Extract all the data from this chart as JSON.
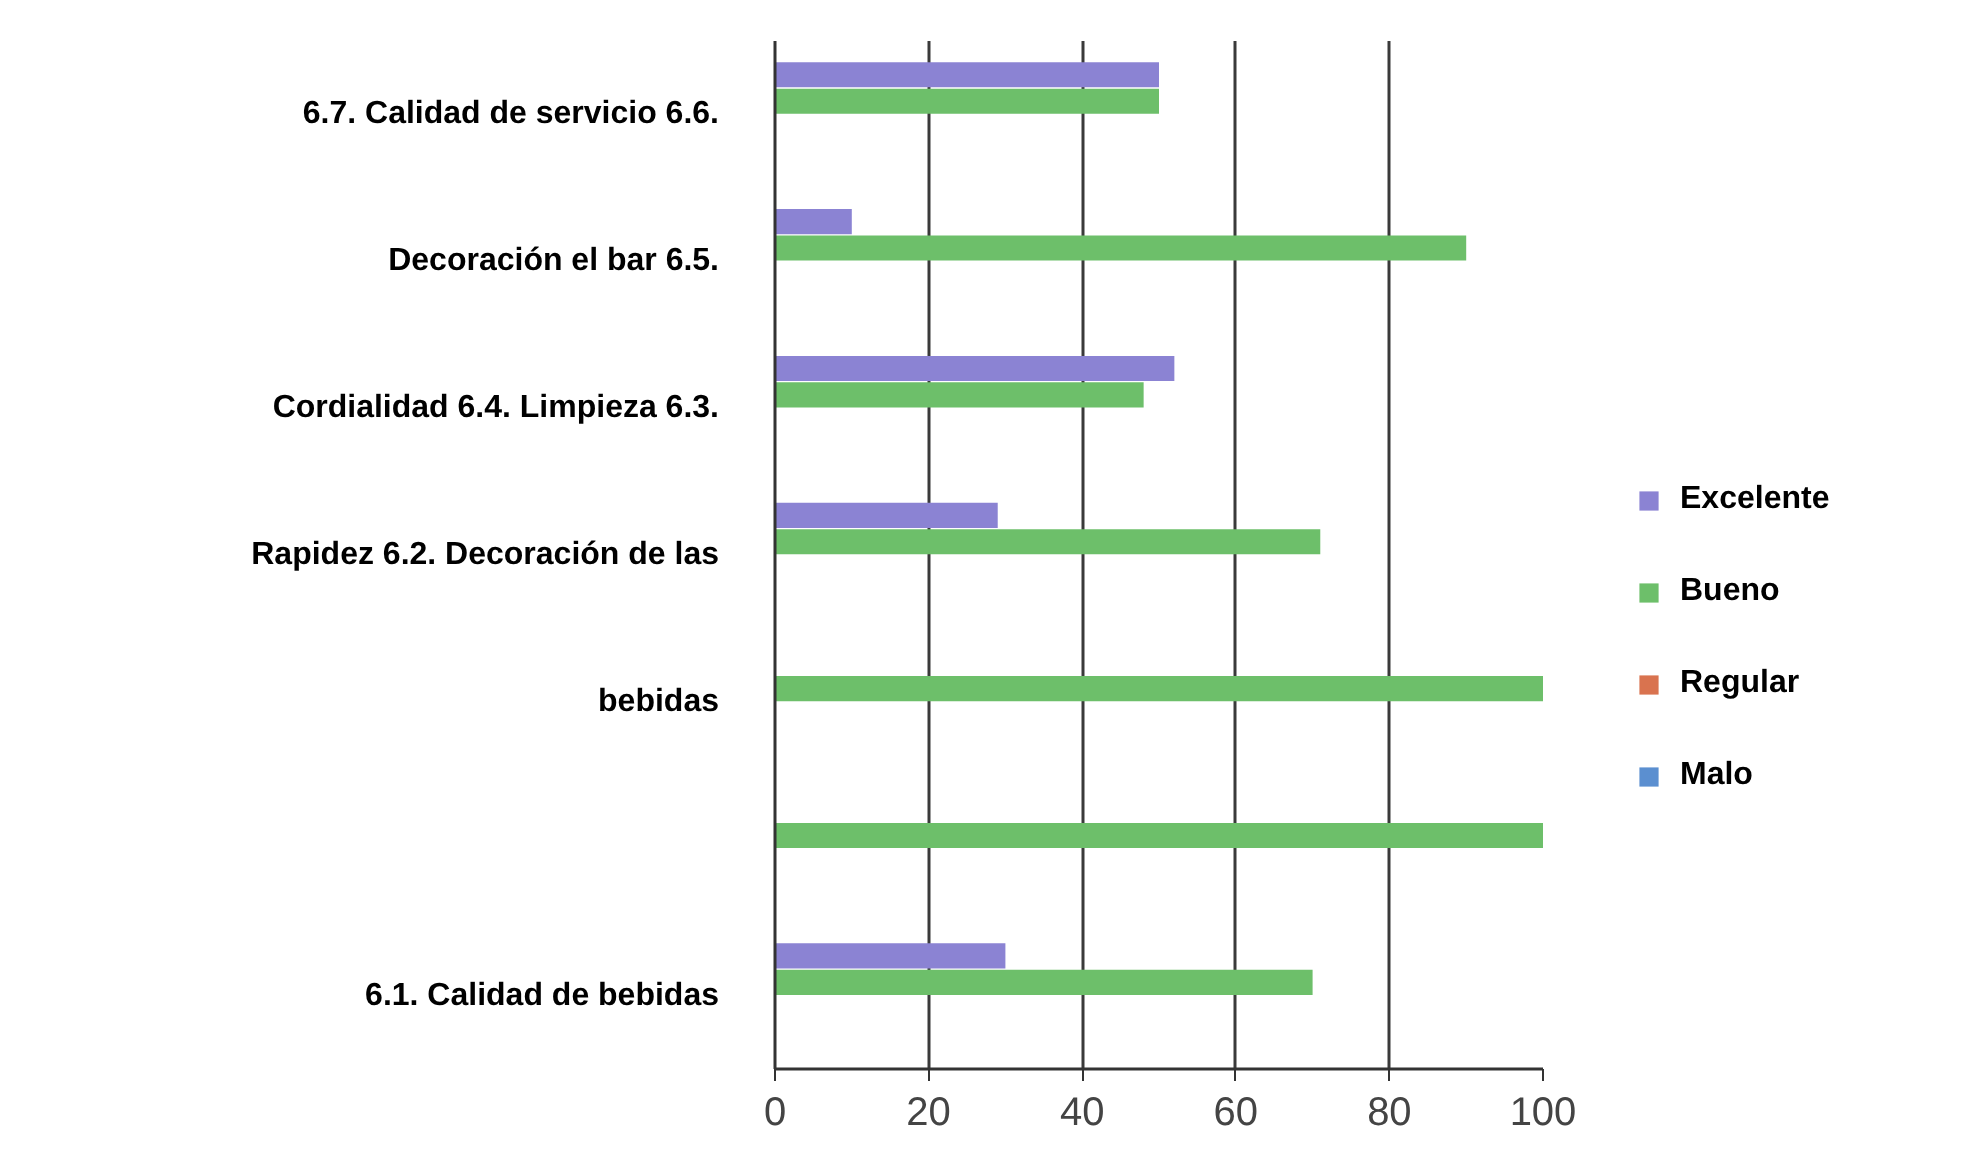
{
  "chart_data": {
    "type": "bar",
    "orientation": "horizontal",
    "categories": [
      "6.7. Calidad de servicio 6.6.",
      "Decoración el bar 6.5.",
      "Cordialidad 6.4. Limpieza 6.3.",
      "Rapidez 6.2. Decoración de las",
      "bebidas",
      null,
      "6.1. Calidad de bebidas"
    ],
    "series": [
      {
        "name": "Excelente",
        "color": "#8b83d3",
        "values": [
          50,
          10,
          52,
          29,
          0,
          0,
          30
        ]
      },
      {
        "name": "Bueno",
        "color": "#6dbf6a",
        "values": [
          50,
          90,
          48,
          71,
          100,
          100,
          70
        ]
      },
      {
        "name": "Regular",
        "color": "#d9734f",
        "values": [
          0,
          0,
          0,
          0,
          0,
          0,
          0
        ]
      },
      {
        "name": "Malo",
        "color": "#5b8fd0",
        "values": [
          0,
          0,
          0,
          0,
          0,
          0,
          0
        ]
      }
    ],
    "xlim": [
      0,
      100
    ],
    "xticks": [
      0,
      20,
      40,
      60,
      80,
      100
    ],
    "grid": "x",
    "legend": "right"
  }
}
